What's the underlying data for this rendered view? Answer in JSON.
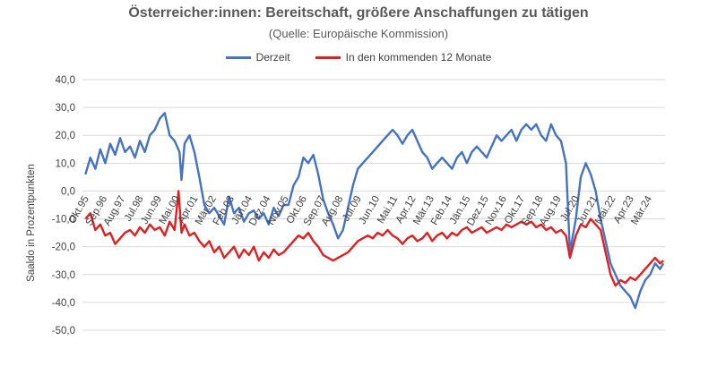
{
  "chart_data": {
    "type": "line",
    "title": "Österreicher:innen: Bereitschaft, größere Anschaffungen zu tätigen",
    "subtitle": "(Quelle: Europäische Kommission)",
    "ylabel": "Saaldo in Prozentpunkten",
    "xlabel": "",
    "ylim": [
      -50,
      40
    ],
    "yticks": [
      40,
      30,
      20,
      10,
      0,
      -10,
      -20,
      -30,
      -40,
      -50
    ],
    "ytick_labels": [
      "40,0",
      "30,0",
      "20,0",
      "10,0",
      "0,0",
      "-10,0",
      "-20,0",
      "-30,0",
      "-40,0",
      "-50,0"
    ],
    "grid": "horizontal",
    "legend_position": "top",
    "x_start": "Okt.95",
    "x_end": "Dez.24",
    "xtick_labels": [
      {
        "label": "Okt.95",
        "x": 1995.75
      },
      {
        "label": "Sep.96",
        "x": 1996.67
      },
      {
        "label": "Aug.97",
        "x": 1997.58
      },
      {
        "label": "Jul.98",
        "x": 1998.5
      },
      {
        "label": "Jun.99",
        "x": 1999.42
      },
      {
        "label": "Mai.00",
        "x": 2000.33
      },
      {
        "label": "Apr.01",
        "x": 2001.25
      },
      {
        "label": "Mär.02",
        "x": 2002.17
      },
      {
        "label": "Feb.03",
        "x": 2003.08
      },
      {
        "label": "Jän.04",
        "x": 2004.0
      },
      {
        "label": "Dez.04",
        "x": 2004.92
      },
      {
        "label": "Nov.05",
        "x": 2005.83
      },
      {
        "label": "Okt.06",
        "x": 2006.75
      },
      {
        "label": "Sep.07",
        "x": 2007.67
      },
      {
        "label": "Aug.08",
        "x": 2008.58
      },
      {
        "label": "Jul.09",
        "x": 2009.5
      },
      {
        "label": "Jun.10",
        "x": 2010.42
      },
      {
        "label": "Mai.11",
        "x": 2011.33
      },
      {
        "label": "Apr.12",
        "x": 2012.25
      },
      {
        "label": "Mär.13",
        "x": 2013.17
      },
      {
        "label": "Feb.14",
        "x": 2014.08
      },
      {
        "label": "Jän.15",
        "x": 2015.0
      },
      {
        "label": "Dez.15",
        "x": 2015.92
      },
      {
        "label": "Nov.16",
        "x": 2016.83
      },
      {
        "label": "Okt.17",
        "x": 2017.75
      },
      {
        "label": "Sep.18",
        "x": 2018.67
      },
      {
        "label": "Aug.19",
        "x": 2019.58
      },
      {
        "label": "Jul.20",
        "x": 2020.5
      },
      {
        "label": "Jun.21",
        "x": 2021.42
      },
      {
        "label": "Mai.22",
        "x": 2022.33
      },
      {
        "label": "Apr.23",
        "x": 2023.25
      },
      {
        "label": "Mär.24",
        "x": 2024.17
      }
    ],
    "series": [
      {
        "name": "Derzeit",
        "color": "#4472C4",
        "points": [
          [
            1995.75,
            6
          ],
          [
            1996.0,
            12
          ],
          [
            1996.25,
            8
          ],
          [
            1996.5,
            15
          ],
          [
            1996.75,
            10
          ],
          [
            1997.0,
            17
          ],
          [
            1997.25,
            13
          ],
          [
            1997.5,
            19
          ],
          [
            1997.75,
            14
          ],
          [
            1998.0,
            16
          ],
          [
            1998.25,
            12
          ],
          [
            1998.5,
            18
          ],
          [
            1998.75,
            14
          ],
          [
            1999.0,
            20
          ],
          [
            1999.25,
            22
          ],
          [
            1999.5,
            26
          ],
          [
            1999.75,
            28
          ],
          [
            2000.0,
            20
          ],
          [
            2000.25,
            18
          ],
          [
            2000.5,
            14
          ],
          [
            2000.6,
            4
          ],
          [
            2000.75,
            17
          ],
          [
            2001.0,
            20
          ],
          [
            2001.25,
            14
          ],
          [
            2001.5,
            5
          ],
          [
            2001.75,
            -5
          ],
          [
            2002.0,
            -8
          ],
          [
            2002.25,
            -6
          ],
          [
            2002.5,
            -9
          ],
          [
            2002.75,
            -12
          ],
          [
            2003.0,
            -2
          ],
          [
            2003.25,
            -8
          ],
          [
            2003.5,
            -6
          ],
          [
            2003.75,
            -11
          ],
          [
            2004.0,
            -8
          ],
          [
            2004.25,
            -7
          ],
          [
            2004.5,
            -10
          ],
          [
            2004.75,
            -8
          ],
          [
            2005.0,
            -12
          ],
          [
            2005.25,
            -6
          ],
          [
            2005.5,
            -9
          ],
          [
            2005.75,
            -5
          ],
          [
            2006.0,
            -5
          ],
          [
            2006.25,
            2
          ],
          [
            2006.5,
            5
          ],
          [
            2006.75,
            12
          ],
          [
            2007.0,
            10
          ],
          [
            2007.25,
            13
          ],
          [
            2007.5,
            6
          ],
          [
            2007.75,
            -3
          ],
          [
            2008.0,
            -8
          ],
          [
            2008.25,
            -12
          ],
          [
            2008.5,
            -17
          ],
          [
            2008.75,
            -14
          ],
          [
            2009.0,
            -6
          ],
          [
            2009.25,
            2
          ],
          [
            2009.5,
            8
          ],
          [
            2009.75,
            10
          ],
          [
            2010.0,
            12
          ],
          [
            2010.25,
            14
          ],
          [
            2010.5,
            16
          ],
          [
            2010.75,
            18
          ],
          [
            2011.0,
            20
          ],
          [
            2011.25,
            22
          ],
          [
            2011.5,
            20
          ],
          [
            2011.75,
            17
          ],
          [
            2012.0,
            20
          ],
          [
            2012.25,
            22
          ],
          [
            2012.5,
            18
          ],
          [
            2012.75,
            14
          ],
          [
            2013.0,
            12
          ],
          [
            2013.25,
            8
          ],
          [
            2013.5,
            10
          ],
          [
            2013.75,
            12
          ],
          [
            2014.0,
            10
          ],
          [
            2014.25,
            8
          ],
          [
            2014.5,
            12
          ],
          [
            2014.75,
            14
          ],
          [
            2015.0,
            10
          ],
          [
            2015.25,
            14
          ],
          [
            2015.5,
            16
          ],
          [
            2015.75,
            14
          ],
          [
            2016.0,
            12
          ],
          [
            2016.25,
            16
          ],
          [
            2016.5,
            20
          ],
          [
            2016.75,
            18
          ],
          [
            2017.0,
            20
          ],
          [
            2017.25,
            22
          ],
          [
            2017.5,
            18
          ],
          [
            2017.75,
            22
          ],
          [
            2018.0,
            24
          ],
          [
            2018.25,
            22
          ],
          [
            2018.5,
            24
          ],
          [
            2018.75,
            20
          ],
          [
            2019.0,
            18
          ],
          [
            2019.25,
            24
          ],
          [
            2019.5,
            20
          ],
          [
            2019.75,
            18
          ],
          [
            2020.0,
            10
          ],
          [
            2020.2,
            -22
          ],
          [
            2020.5,
            -10
          ],
          [
            2020.75,
            5
          ],
          [
            2021.0,
            10
          ],
          [
            2021.25,
            6
          ],
          [
            2021.5,
            0
          ],
          [
            2021.75,
            -10
          ],
          [
            2022.0,
            -18
          ],
          [
            2022.25,
            -26
          ],
          [
            2022.5,
            -30
          ],
          [
            2022.75,
            -34
          ],
          [
            2023.0,
            -36
          ],
          [
            2023.25,
            -38
          ],
          [
            2023.5,
            -42
          ],
          [
            2023.75,
            -36
          ],
          [
            2024.0,
            -32
          ],
          [
            2024.25,
            -30
          ],
          [
            2024.5,
            -26
          ],
          [
            2024.75,
            -28
          ],
          [
            2024.92,
            -26
          ]
        ]
      },
      {
        "name": "In den kommenden 12 Monate",
        "color": "#E02020",
        "points": [
          [
            1995.75,
            -10
          ],
          [
            1996.0,
            -8
          ],
          [
            1996.25,
            -14
          ],
          [
            1996.5,
            -12
          ],
          [
            1996.75,
            -16
          ],
          [
            1997.0,
            -15
          ],
          [
            1997.25,
            -19
          ],
          [
            1997.5,
            -17
          ],
          [
            1997.75,
            -15
          ],
          [
            1998.0,
            -14
          ],
          [
            1998.25,
            -16
          ],
          [
            1998.5,
            -13
          ],
          [
            1998.75,
            -15
          ],
          [
            1999.0,
            -12
          ],
          [
            1999.25,
            -14
          ],
          [
            1999.5,
            -13
          ],
          [
            1999.75,
            -16
          ],
          [
            2000.0,
            -11
          ],
          [
            2000.25,
            -14
          ],
          [
            2000.45,
            0
          ],
          [
            2000.6,
            -15
          ],
          [
            2000.75,
            -12
          ],
          [
            2001.0,
            -16
          ],
          [
            2001.25,
            -15
          ],
          [
            2001.5,
            -18
          ],
          [
            2001.75,
            -20
          ],
          [
            2002.0,
            -18
          ],
          [
            2002.25,
            -22
          ],
          [
            2002.5,
            -20
          ],
          [
            2002.75,
            -24
          ],
          [
            2003.0,
            -22
          ],
          [
            2003.25,
            -20
          ],
          [
            2003.5,
            -24
          ],
          [
            2003.75,
            -21
          ],
          [
            2004.0,
            -23
          ],
          [
            2004.25,
            -20
          ],
          [
            2004.5,
            -25
          ],
          [
            2004.75,
            -22
          ],
          [
            2005.0,
            -24
          ],
          [
            2005.25,
            -21
          ],
          [
            2005.5,
            -23
          ],
          [
            2005.75,
            -22
          ],
          [
            2006.0,
            -20
          ],
          [
            2006.25,
            -18
          ],
          [
            2006.5,
            -16
          ],
          [
            2006.75,
            -17
          ],
          [
            2007.0,
            -15
          ],
          [
            2007.25,
            -18
          ],
          [
            2007.5,
            -20
          ],
          [
            2007.75,
            -23
          ],
          [
            2008.0,
            -24
          ],
          [
            2008.25,
            -25
          ],
          [
            2008.5,
            -24
          ],
          [
            2008.75,
            -23
          ],
          [
            2009.0,
            -22
          ],
          [
            2009.25,
            -20
          ],
          [
            2009.5,
            -18
          ],
          [
            2009.75,
            -17
          ],
          [
            2010.0,
            -16
          ],
          [
            2010.25,
            -17
          ],
          [
            2010.5,
            -15
          ],
          [
            2010.75,
            -16
          ],
          [
            2011.0,
            -14
          ],
          [
            2011.25,
            -16
          ],
          [
            2011.5,
            -17
          ],
          [
            2011.75,
            -19
          ],
          [
            2012.0,
            -17
          ],
          [
            2012.25,
            -16
          ],
          [
            2012.5,
            -18
          ],
          [
            2012.75,
            -17
          ],
          [
            2013.0,
            -15
          ],
          [
            2013.25,
            -18
          ],
          [
            2013.5,
            -16
          ],
          [
            2013.75,
            -15
          ],
          [
            2014.0,
            -17
          ],
          [
            2014.25,
            -15
          ],
          [
            2014.5,
            -16
          ],
          [
            2014.75,
            -14
          ],
          [
            2015.0,
            -13
          ],
          [
            2015.25,
            -15
          ],
          [
            2015.5,
            -14
          ],
          [
            2015.75,
            -13
          ],
          [
            2016.0,
            -15
          ],
          [
            2016.25,
            -14
          ],
          [
            2016.5,
            -13
          ],
          [
            2016.75,
            -14
          ],
          [
            2017.0,
            -12
          ],
          [
            2017.25,
            -13
          ],
          [
            2017.5,
            -12
          ],
          [
            2017.75,
            -11
          ],
          [
            2018.0,
            -12
          ],
          [
            2018.25,
            -11
          ],
          [
            2018.5,
            -13
          ],
          [
            2018.75,
            -12
          ],
          [
            2019.0,
            -14
          ],
          [
            2019.25,
            -13
          ],
          [
            2019.5,
            -15
          ],
          [
            2019.75,
            -14
          ],
          [
            2020.0,
            -16
          ],
          [
            2020.2,
            -24
          ],
          [
            2020.5,
            -16
          ],
          [
            2020.75,
            -12
          ],
          [
            2021.0,
            -13
          ],
          [
            2021.25,
            -10
          ],
          [
            2021.5,
            -12
          ],
          [
            2021.75,
            -14
          ],
          [
            2022.0,
            -22
          ],
          [
            2022.25,
            -30
          ],
          [
            2022.5,
            -34
          ],
          [
            2022.75,
            -32
          ],
          [
            2023.0,
            -33
          ],
          [
            2023.25,
            -31
          ],
          [
            2023.5,
            -32
          ],
          [
            2023.75,
            -30
          ],
          [
            2024.0,
            -28
          ],
          [
            2024.25,
            -26
          ],
          [
            2024.5,
            -24
          ],
          [
            2024.75,
            -26
          ],
          [
            2024.92,
            -25
          ]
        ]
      }
    ]
  }
}
